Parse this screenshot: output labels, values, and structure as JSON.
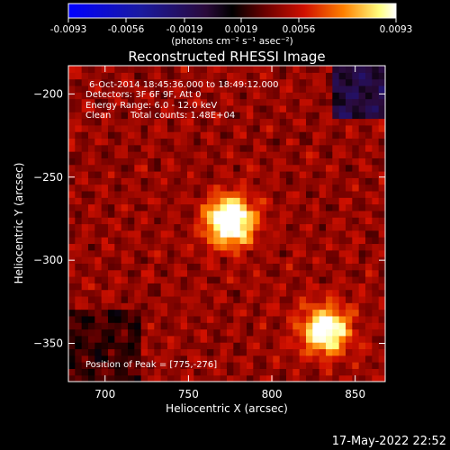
{
  "colorbar": {
    "ticks": [
      "-0.0093",
      "-0.0056",
      "-0.0019",
      "0.0019",
      "0.0056",
      "0.0093"
    ],
    "range": [
      -0.0093,
      0.0093
    ],
    "units_label": "(photons cm⁻² s⁻¹ asec⁻²)"
  },
  "chart_data": {
    "type": "heatmap",
    "title": "Reconstructed RHESSI Image",
    "xlabel": "Heliocentric X (arcsec)",
    "ylabel": "Heliocentric Y (arcsec)",
    "xlim": [
      678,
      868
    ],
    "ylim": [
      -373,
      -183
    ],
    "xticks": [
      700,
      750,
      800,
      850
    ],
    "yticks": [
      -200,
      -250,
      -300,
      -350
    ],
    "sources": [
      {
        "x": 775,
        "y": -276,
        "peak": 0.0093
      },
      {
        "x": 832,
        "y": -342,
        "peak": 0.0078
      }
    ],
    "annotations": [
      "6-Oct-2014 18:45:36.000 to 18:49:12.000",
      "Detectors: 3F 6F 9F, Att 0",
      "Energy Range: 6.0 - 12.0 keV",
      "Clean",
      "Total counts: 1.48E+04",
      "Position of Peak = [775,-276]"
    ]
  },
  "timestamp": "17-May-2022 22:52"
}
